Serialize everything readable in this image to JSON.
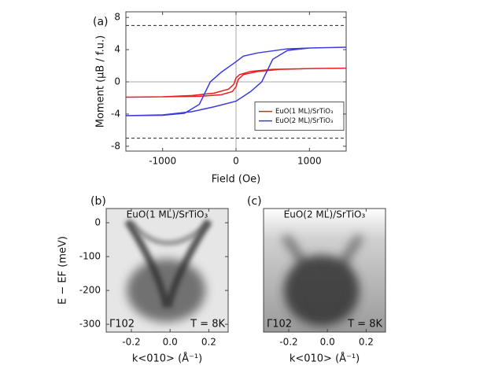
{
  "chart_data": [
    {
      "type": "line",
      "panel": "(a)",
      "x_label": "Field (Oe)",
      "y_label": "Moment (μB / f.u.)",
      "xlim": [
        -1500,
        1500
      ],
      "xticks": [
        -1000,
        0,
        1000
      ],
      "ylim": [
        -8.6,
        8.7
      ],
      "yticks": [
        -8,
        -4,
        0,
        4,
        8
      ],
      "hlines": [
        7,
        -7
      ],
      "legend": "lower right",
      "series": [
        {
          "name": "EuO(1 ML)/SrTiO₃",
          "color": "#e8201e",
          "x": [
            -1500,
            -1000,
            -500,
            -200,
            -50,
            0,
            30,
            100,
            300,
            600,
            1000,
            1500,
            1000,
            500,
            200,
            50,
            0,
            -30,
            -100,
            -300,
            -600,
            -1000,
            -1500
          ],
          "values": [
            -1.9,
            -1.85,
            -1.8,
            -1.6,
            -1.2,
            -0.6,
            0.3,
            0.9,
            1.3,
            1.55,
            1.65,
            1.7,
            1.65,
            1.55,
            1.3,
            0.9,
            0.5,
            -0.3,
            -0.9,
            -1.4,
            -1.7,
            -1.85,
            -1.9
          ]
        },
        {
          "name": "EuO(2 ML)/SrTiO₃",
          "color": "#3a3ae0",
          "x": [
            -1500,
            -1000,
            -600,
            -300,
            0,
            200,
            350,
            500,
            700,
            1000,
            1500,
            1000,
            700,
            300,
            100,
            0,
            -200,
            -350,
            -500,
            -700,
            -1000,
            -1500
          ],
          "values": [
            -4.2,
            -4.1,
            -3.7,
            -3.1,
            -2.4,
            -1.2,
            0,
            2.8,
            3.9,
            4.2,
            4.3,
            4.2,
            4.1,
            3.6,
            3.2,
            2.5,
            1.2,
            0,
            -2.8,
            -3.9,
            -4.15,
            -4.2
          ]
        }
      ]
    },
    {
      "type": "image",
      "panel": "(b)",
      "title": "EuO(1 ML)/SrTiO₃",
      "title_color": "#e8201e",
      "x_label": "k<010> (Å⁻¹)",
      "y_label": "E − EF (meV)",
      "xlim": [
        -0.33,
        0.3
      ],
      "xticks": [
        -0.2,
        {
          "value": 0,
          "label": "0.0"
        },
        0.2
      ],
      "ylim": [
        -323,
        42
      ],
      "yticks": [
        0,
        -100,
        -200,
        -300
      ],
      "annotations": [
        "Γ102",
        "T = 8K"
      ]
    },
    {
      "type": "image",
      "panel": "(c)",
      "title": "EuO(2 ML)/SrTiO₃",
      "title_color": "#2424d8",
      "x_label": "k<010> (Å⁻¹)",
      "xlim": [
        -0.33,
        0.3
      ],
      "xticks": [
        -0.2,
        {
          "value": 0,
          "label": "0.0"
        },
        0.2
      ],
      "ylim": [
        -323,
        42
      ],
      "annotations": [
        "Γ102",
        "T = 8K"
      ]
    }
  ]
}
